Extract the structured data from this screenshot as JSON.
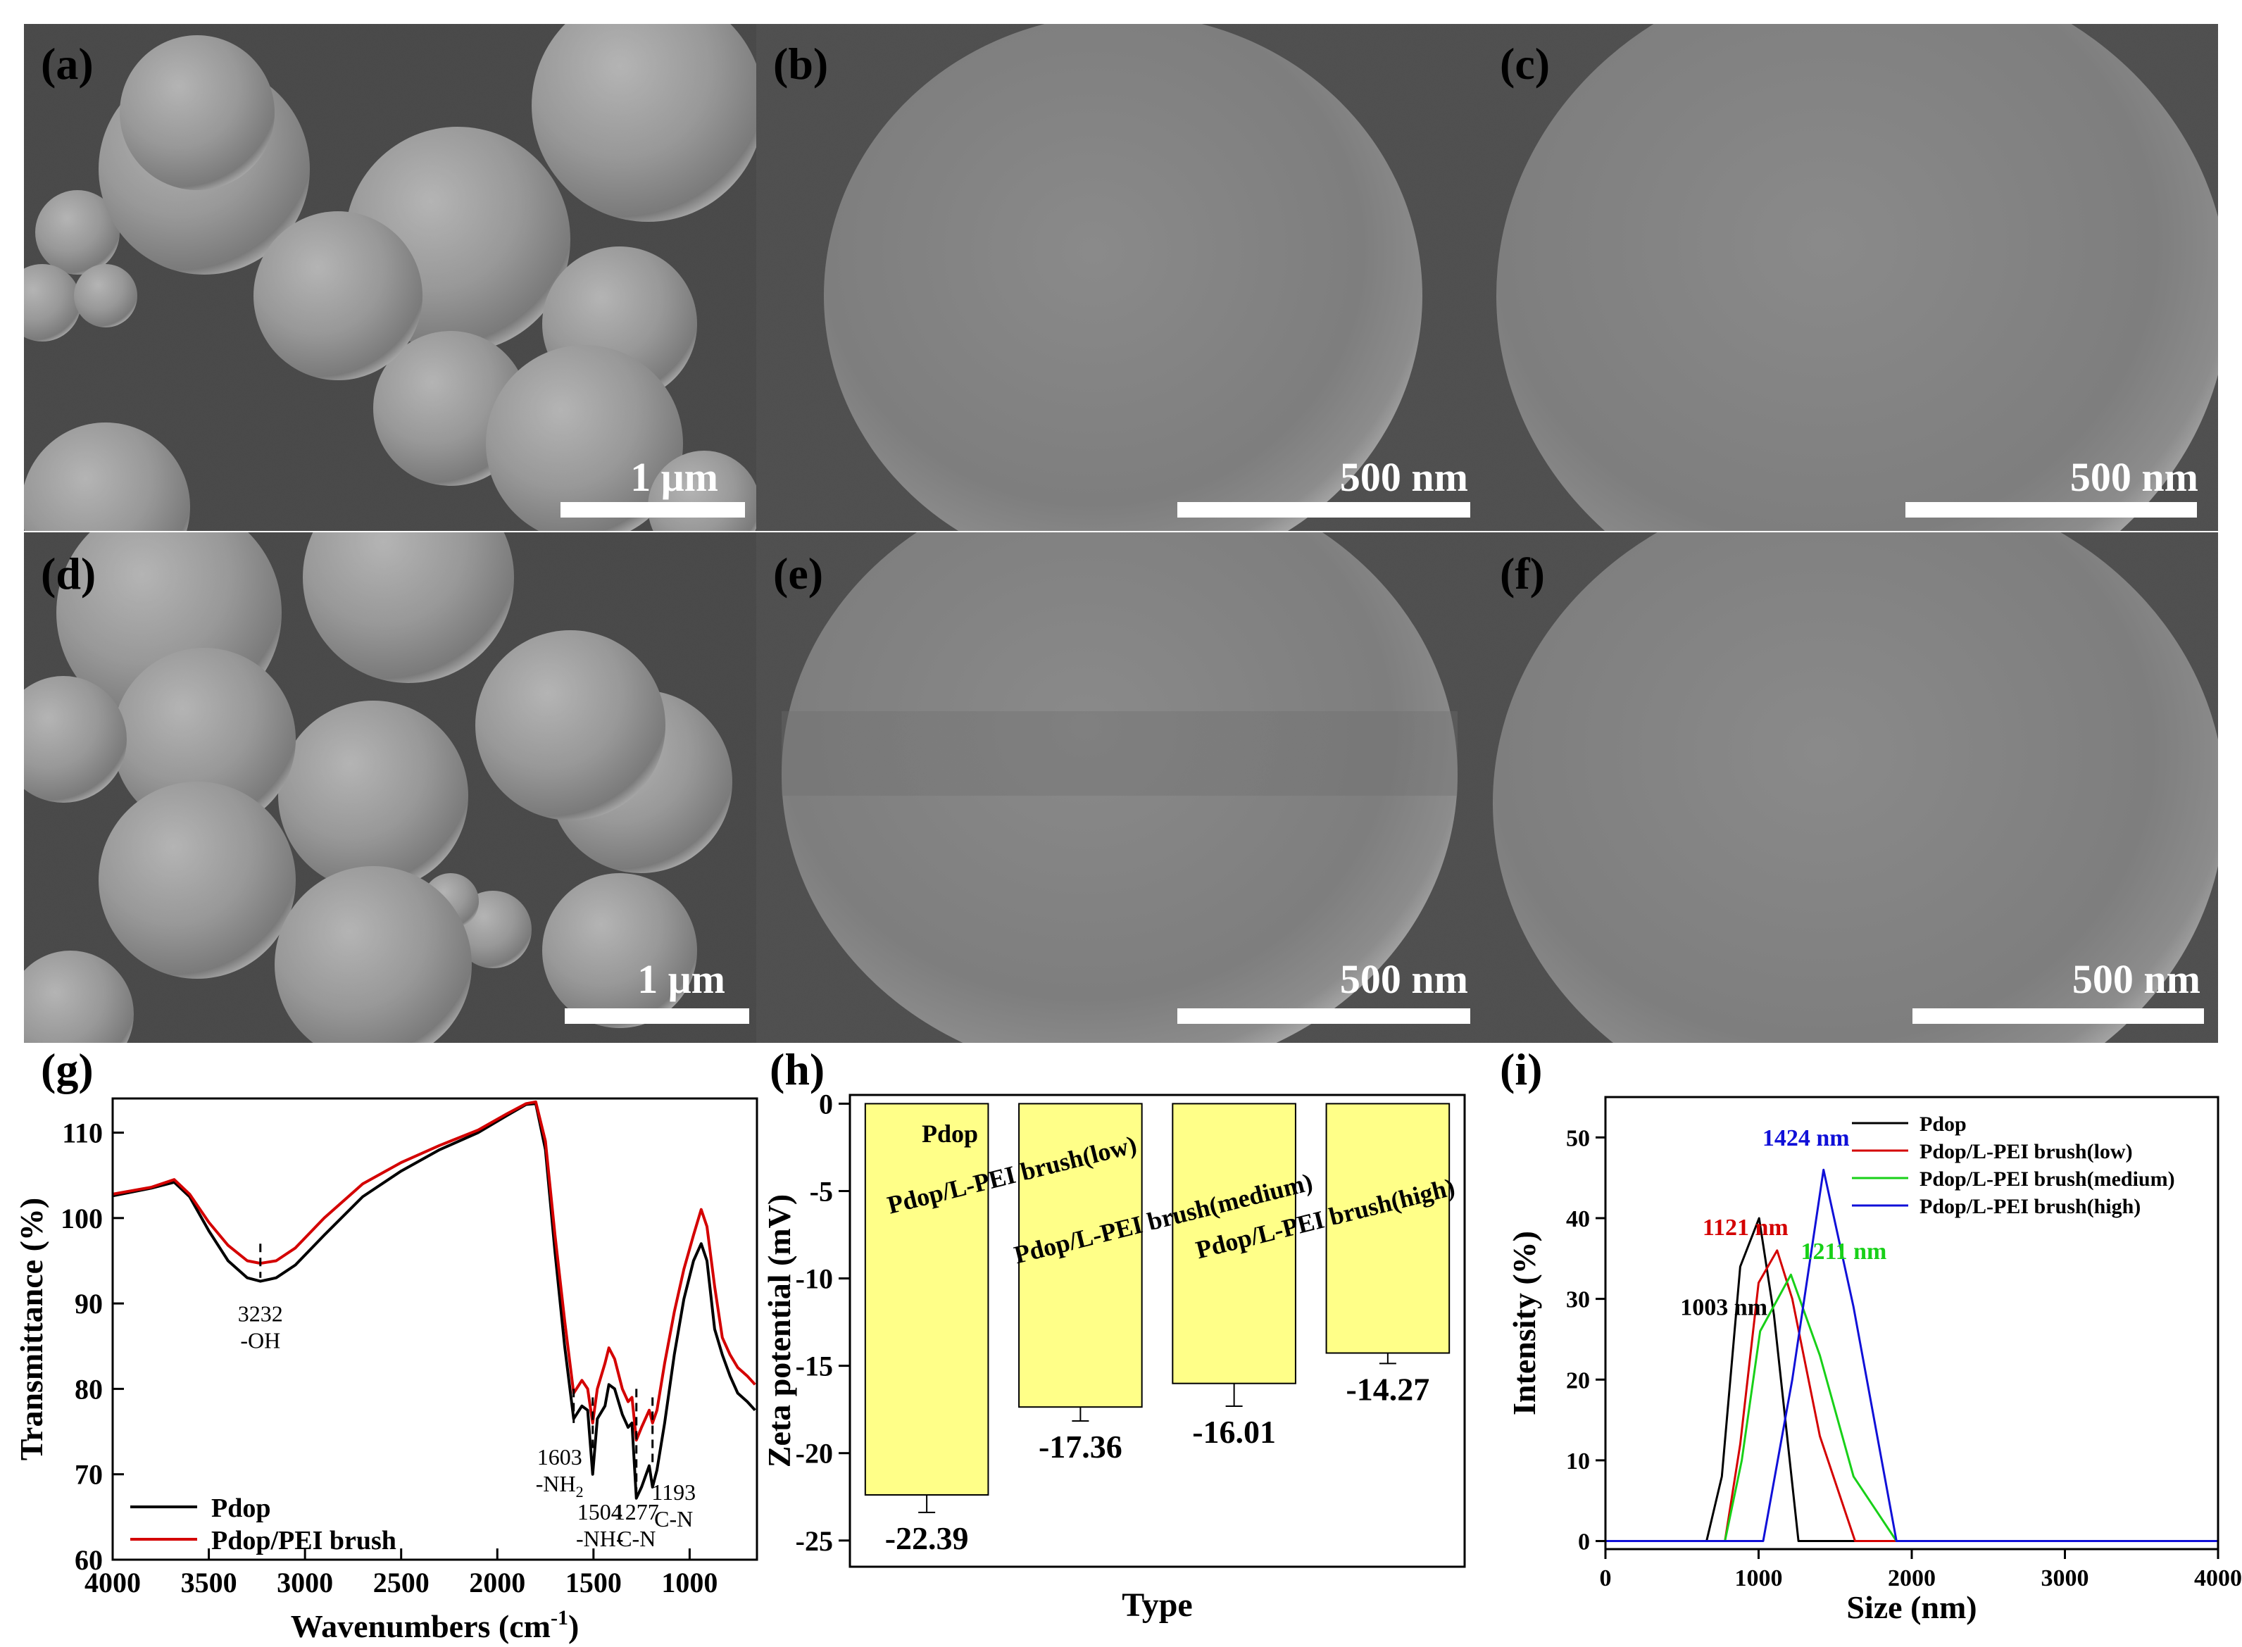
{
  "sem_panels": [
    {
      "label": "(a)",
      "scale": "1 μm"
    },
    {
      "label": "(b)",
      "scale": "500 nm"
    },
    {
      "label": "(c)",
      "scale": "500 nm"
    },
    {
      "label": "(d)",
      "scale": "1 μm"
    },
    {
      "label": "(e)",
      "scale": "500 nm"
    },
    {
      "label": "(f)",
      "scale": "500 nm"
    }
  ],
  "colors": {
    "black": "#000000",
    "red": "#d40000",
    "green": "#18d018",
    "blue": "#1010d8",
    "bar_fill": "#ffff88"
  },
  "chart_data": [
    {
      "panel": "(g)",
      "type": "line",
      "xlabel": "Wavenumbers (cm",
      "xlabel_sup": "-1",
      "xlabel_end": ")",
      "ylabel": "Transmittance (%)",
      "xlim": [
        4000,
        650
      ],
      "ylim": [
        60,
        114
      ],
      "xticks": [
        4000,
        3500,
        3000,
        2500,
        2000,
        1500,
        1000
      ],
      "yticks": [
        60,
        70,
        80,
        90,
        100,
        110
      ],
      "series": [
        {
          "name": "Pdop",
          "color": "#000000",
          "points": [
            [
              4000,
              102.6
            ],
            [
              3800,
              103.5
            ],
            [
              3680,
              104.2
            ],
            [
              3600,
              102.5
            ],
            [
              3500,
              98.5
            ],
            [
              3400,
              95.0
            ],
            [
              3300,
              93.0
            ],
            [
              3232,
              92.6
            ],
            [
              3150,
              93.0
            ],
            [
              3050,
              94.5
            ],
            [
              2900,
              98.0
            ],
            [
              2700,
              102.5
            ],
            [
              2500,
              105.5
            ],
            [
              2300,
              108.0
            ],
            [
              2100,
              110.0
            ],
            [
              1950,
              112.0
            ],
            [
              1850,
              113.3
            ],
            [
              1800,
              113.4
            ],
            [
              1750,
              108.0
            ],
            [
              1700,
              96.0
            ],
            [
              1650,
              85.0
            ],
            [
              1603,
              76.5
            ],
            [
              1560,
              78.0
            ],
            [
              1530,
              77.5
            ],
            [
              1504,
              70.0
            ],
            [
              1480,
              76.5
            ],
            [
              1440,
              78.0
            ],
            [
              1420,
              80.5
            ],
            [
              1390,
              80.0
            ],
            [
              1350,
              77.0
            ],
            [
              1320,
              75.5
            ],
            [
              1300,
              76.0
            ],
            [
              1277,
              67.2
            ],
            [
              1250,
              68.5
            ],
            [
              1210,
              71.0
            ],
            [
              1193,
              68.5
            ],
            [
              1170,
              70.5
            ],
            [
              1130,
              76.0
            ],
            [
              1080,
              84.0
            ],
            [
              1030,
              90.5
            ],
            [
              980,
              95.0
            ],
            [
              940,
              97.0
            ],
            [
              910,
              95.0
            ],
            [
              870,
              87.0
            ],
            [
              830,
              84.0
            ],
            [
              790,
              81.5
            ],
            [
              750,
              79.5
            ],
            [
              700,
              78.5
            ],
            [
              660,
              77.5
            ]
          ]
        },
        {
          "name": "Pdop/PEI brush",
          "color": "#d40000",
          "points": [
            [
              4000,
              102.8
            ],
            [
              3800,
              103.6
            ],
            [
              3680,
              104.5
            ],
            [
              3600,
              102.8
            ],
            [
              3500,
              99.5
            ],
            [
              3400,
              96.8
            ],
            [
              3300,
              95.0
            ],
            [
              3232,
              94.7
            ],
            [
              3150,
              95.0
            ],
            [
              3050,
              96.5
            ],
            [
              2900,
              100.0
            ],
            [
              2700,
              104.0
            ],
            [
              2500,
              106.5
            ],
            [
              2300,
              108.5
            ],
            [
              2100,
              110.3
            ],
            [
              1950,
              112.2
            ],
            [
              1850,
              113.4
            ],
            [
              1800,
              113.6
            ],
            [
              1750,
              109.0
            ],
            [
              1700,
              98.0
            ],
            [
              1650,
              88.0
            ],
            [
              1603,
              79.5
            ],
            [
              1560,
              81.0
            ],
            [
              1530,
              80.0
            ],
            [
              1504,
              76.0
            ],
            [
              1480,
              80.0
            ],
            [
              1440,
              83.0
            ],
            [
              1420,
              84.8
            ],
            [
              1390,
              83.5
            ],
            [
              1350,
              80.0
            ],
            [
              1320,
              78.5
            ],
            [
              1300,
              79.0
            ],
            [
              1277,
              74.0
            ],
            [
              1250,
              75.5
            ],
            [
              1210,
              77.5
            ],
            [
              1193,
              76.0
            ],
            [
              1170,
              77.5
            ],
            [
              1130,
              83.0
            ],
            [
              1080,
              89.0
            ],
            [
              1030,
              94.0
            ],
            [
              980,
              98.0
            ],
            [
              940,
              101.0
            ],
            [
              910,
              99.0
            ],
            [
              870,
              92.0
            ],
            [
              830,
              86.0
            ],
            [
              790,
              84.0
            ],
            [
              750,
              82.5
            ],
            [
              700,
              81.5
            ],
            [
              660,
              80.5
            ]
          ]
        }
      ],
      "annotations": [
        {
          "x": 3232,
          "y_top": 97,
          "y_bot": 93,
          "lines": [
            "3232",
            "-OH"
          ]
        },
        {
          "x": 1603,
          "y_top": 80,
          "y_bot": 76,
          "lines": [
            "1603",
            "-NH2"
          ]
        },
        {
          "x": 1504,
          "y_top": 79,
          "y_bot": 73,
          "lines": [
            "1504",
            "-NH-"
          ]
        },
        {
          "x": 1277,
          "y_top": 80,
          "y_bot": 68,
          "lines": [
            "1277",
            "C-N"
          ]
        },
        {
          "x": 1193,
          "y_top": 79,
          "y_bot": 71,
          "lines": [
            "1193",
            "C-N"
          ]
        }
      ],
      "legend": "bottom-left"
    },
    {
      "panel": "(h)",
      "type": "bar",
      "xlabel": "Type",
      "ylabel": "Zeta potential (mV)",
      "ylim": [
        -26.5,
        0.5
      ],
      "yticks": [
        0,
        -5,
        -10,
        -15,
        -20,
        -25
      ],
      "categories": [
        "Pdop",
        "Pdop/L-PEI brush(low)",
        "Pdop/L-PEI brush(medium)",
        "Pdop/L-PEI brush(high)"
      ],
      "values": [
        -22.39,
        -17.36,
        -16.01,
        -14.27
      ],
      "errors": [
        1.0,
        0.8,
        1.3,
        0.6
      ],
      "value_labels": [
        "-22.39",
        "-17.36",
        "-16.01",
        "-14.27"
      ],
      "bar_color": "#ffff88"
    },
    {
      "panel": "(i)",
      "type": "line",
      "xlabel": "Size (nm)",
      "ylabel": "Intensity (%)",
      "xlim": [
        0,
        4000
      ],
      "ylim": [
        -1,
        55
      ],
      "xticks": [
        0,
        1000,
        2000,
        3000,
        4000
      ],
      "yticks": [
        0,
        10,
        20,
        30,
        40,
        50
      ],
      "series": [
        {
          "name": "Pdop",
          "color": "#000000",
          "points": [
            [
              0,
              0
            ],
            [
              660,
              0
            ],
            [
              760,
              8
            ],
            [
              880,
              34
            ],
            [
              1003,
              40
            ],
            [
              1100,
              28
            ],
            [
              1260,
              0
            ],
            [
              4000,
              0
            ]
          ]
        },
        {
          "name": "Pdop/L-PEI brush(low)",
          "color": "#d40000",
          "points": [
            [
              0,
              0
            ],
            [
              780,
              0
            ],
            [
              880,
              12
            ],
            [
              1000,
              32
            ],
            [
              1121,
              36
            ],
            [
              1220,
              30
            ],
            [
              1400,
              13
            ],
            [
              1630,
              0
            ],
            [
              4000,
              0
            ]
          ]
        },
        {
          "name": "Pdop/L-PEI brush(medium)",
          "color": "#18d018",
          "points": [
            [
              0,
              0
            ],
            [
              780,
              0
            ],
            [
              890,
              10
            ],
            [
              1010,
              26
            ],
            [
              1211,
              33
            ],
            [
              1400,
              23
            ],
            [
              1620,
              8
            ],
            [
              1900,
              0
            ],
            [
              4000,
              0
            ]
          ]
        },
        {
          "name": "Pdop/L-PEI brush(high)",
          "color": "#1010d8",
          "points": [
            [
              0,
              0
            ],
            [
              1030,
              0
            ],
            [
              1220,
              20
            ],
            [
              1424,
              46
            ],
            [
              1620,
              29
            ],
            [
              1900,
              0
            ],
            [
              4000,
              0
            ]
          ]
        }
      ],
      "peak_labels": [
        {
          "text": "1003 nm",
          "color": "#000000",
          "x": 1003,
          "y": 28
        },
        {
          "text": "1121 nm",
          "color": "#d40000",
          "x": 1121,
          "y": 36
        },
        {
          "text": "1211 nm",
          "color": "#18d018",
          "x": 1211,
          "y": 33
        },
        {
          "text": "1424 nm",
          "color": "#1010d8",
          "x": 1424,
          "y": 46
        }
      ],
      "legend": "top-right"
    }
  ]
}
